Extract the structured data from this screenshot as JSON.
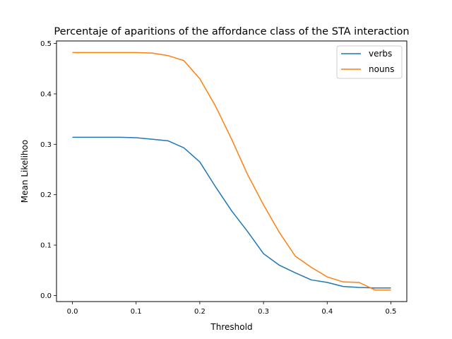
{
  "chart_data": {
    "type": "line",
    "title": "Percentaje of aparitions of the affordance class of the STA interaction",
    "xlabel": "Threshold",
    "ylabel": "Mean Likelihoo",
    "xlim": [
      -0.025,
      0.525
    ],
    "ylim": [
      -0.012,
      0.505
    ],
    "xticks": [
      0.0,
      0.1,
      0.2,
      0.3,
      0.4,
      0.5
    ],
    "xtick_labels": [
      "0.0",
      "0.1",
      "0.2",
      "0.3",
      "0.4",
      "0.5"
    ],
    "yticks": [
      0.0,
      0.1,
      0.2,
      0.3,
      0.4,
      0.5
    ],
    "ytick_labels": [
      "0.0",
      "0.1",
      "0.2",
      "0.3",
      "0.4",
      "0.5"
    ],
    "grid": false,
    "legend_position": "top-right",
    "x": [
      0.0,
      0.025,
      0.05,
      0.075,
      0.1,
      0.125,
      0.15,
      0.175,
      0.2,
      0.225,
      0.25,
      0.275,
      0.3,
      0.325,
      0.35,
      0.375,
      0.4,
      0.425,
      0.45,
      0.475,
      0.5
    ],
    "series": [
      {
        "name": "verbs",
        "color": "#1f77b4",
        "values": [
          0.314,
          0.314,
          0.314,
          0.314,
          0.313,
          0.31,
          0.307,
          0.293,
          0.265,
          0.215,
          0.168,
          0.127,
          0.083,
          0.06,
          0.045,
          0.031,
          0.026,
          0.018,
          0.016,
          0.015,
          0.015
        ]
      },
      {
        "name": "nouns",
        "color": "#ff7f0e",
        "values": [
          0.482,
          0.482,
          0.482,
          0.482,
          0.482,
          0.481,
          0.476,
          0.466,
          0.43,
          0.375,
          0.31,
          0.24,
          0.18,
          0.125,
          0.078,
          0.056,
          0.037,
          0.027,
          0.026,
          0.011,
          0.011
        ]
      }
    ]
  }
}
